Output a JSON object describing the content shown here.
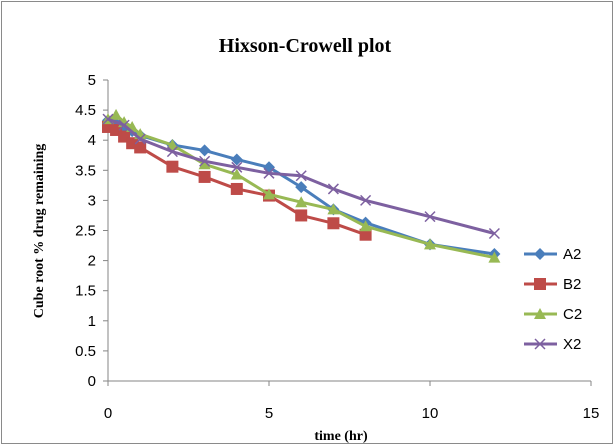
{
  "chart_data": {
    "type": "line",
    "title": "Hixson-Crowell plot",
    "xlabel": "time (hr)",
    "ylabel": "Cube root % drug remaining",
    "xlim": [
      0,
      15
    ],
    "ylim": [
      0,
      5
    ],
    "xticks": [
      "0",
      "5",
      "10",
      "15"
    ],
    "yticks": [
      "0",
      "0.5",
      "1",
      "1.5",
      "2",
      "2.5",
      "3",
      "3.5",
      "4",
      "4.5",
      "5"
    ],
    "grid": false,
    "legend_position": "right",
    "series": [
      {
        "name": "A2",
        "color": "#4a7ebb",
        "marker": "diamond",
        "x": [
          0,
          0.25,
          0.5,
          0.75,
          1,
          2,
          3,
          4,
          5,
          6,
          7,
          8,
          10,
          12
        ],
        "y": [
          4.33,
          4.28,
          4.2,
          4.15,
          4.08,
          3.92,
          3.83,
          3.68,
          3.55,
          3.22,
          2.85,
          2.63,
          2.27,
          2.11
        ]
      },
      {
        "name": "B2",
        "color": "#be4b48",
        "marker": "square",
        "x": [
          0,
          0.25,
          0.5,
          0.75,
          1,
          2,
          3,
          4,
          5,
          6,
          7,
          8
        ],
        "y": [
          4.22,
          4.17,
          4.06,
          3.95,
          3.88,
          3.56,
          3.39,
          3.19,
          3.08,
          2.75,
          2.62,
          2.43
        ]
      },
      {
        "name": "C2",
        "color": "#98b954",
        "marker": "triangle",
        "x": [
          0,
          0.25,
          0.5,
          0.75,
          1,
          2,
          3,
          4,
          5,
          6,
          7,
          8,
          10,
          12
        ],
        "y": [
          4.35,
          4.42,
          4.3,
          4.22,
          4.1,
          3.92,
          3.6,
          3.43,
          3.1,
          2.97,
          2.85,
          2.57,
          2.27,
          2.05
        ]
      },
      {
        "name": "X2",
        "color": "#7d60a0",
        "marker": "x",
        "x": [
          0,
          0.5,
          1,
          2,
          3,
          4,
          5,
          6,
          7,
          8,
          10,
          12
        ],
        "y": [
          4.35,
          4.25,
          4.02,
          3.81,
          3.65,
          3.55,
          3.45,
          3.41,
          3.19,
          3.0,
          2.73,
          2.45
        ]
      }
    ]
  }
}
